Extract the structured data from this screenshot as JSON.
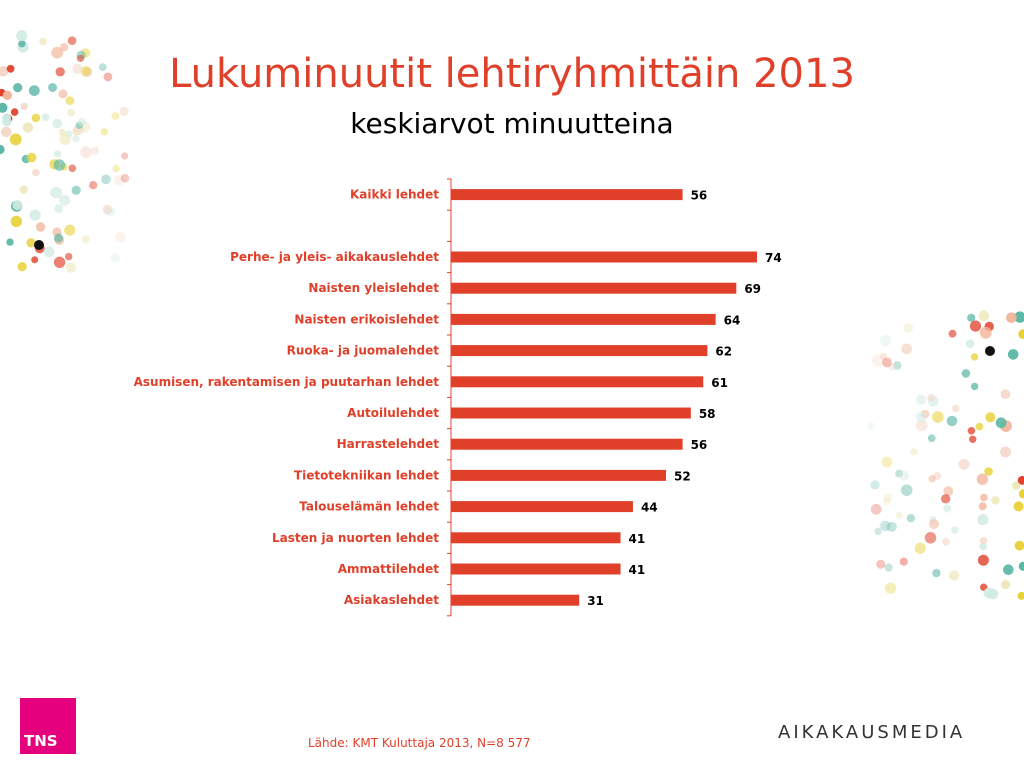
{
  "header": {
    "title": "Lukuminuutit lehtiryhmittäin 2013",
    "subtitle": "keskiarvot minuutteina"
  },
  "chart_data": {
    "type": "bar",
    "orientation": "horizontal",
    "categories": [
      "Kaikki lehdet",
      "",
      "Perhe- ja yleis- aikakauslehdet",
      "Naisten yleislehdet",
      "Naisten erikoislehdet",
      "Ruoka- ja juomalehdet",
      "Asumisen, rakentamisen ja puutarhan lehdet",
      "Autoilulehdet",
      "Harrastelehdet",
      "Tietotekniikan lehdet",
      "Talouselämän lehdet",
      "Lasten ja nuorten lehdet",
      "Ammattilehdet",
      "Asiakaslehdet"
    ],
    "values": [
      56,
      null,
      74,
      69,
      64,
      62,
      61,
      58,
      56,
      52,
      44,
      41,
      41,
      31
    ],
    "data_labels": [
      "56",
      "",
      "74",
      "69",
      "64",
      "62",
      "61",
      "58",
      "56",
      "52",
      "44",
      "41",
      "41",
      "31"
    ],
    "xlim": [
      0,
      80
    ],
    "grid": false,
    "bar_color": "#E0402A"
  },
  "footer": {
    "logo_text": "TNS",
    "source": "Lähde: KMT Kuluttaja 2013, N=8 577",
    "brand": "AIKAKAUSMEDIA"
  },
  "colors": {
    "accent": "#E0402A",
    "tns_magenta": "#E5007D",
    "dot_teal": "#5BB7A6",
    "dot_yellow": "#E8D23A",
    "dot_red": "#E0402A",
    "dot_peach": "#F2B49A"
  }
}
